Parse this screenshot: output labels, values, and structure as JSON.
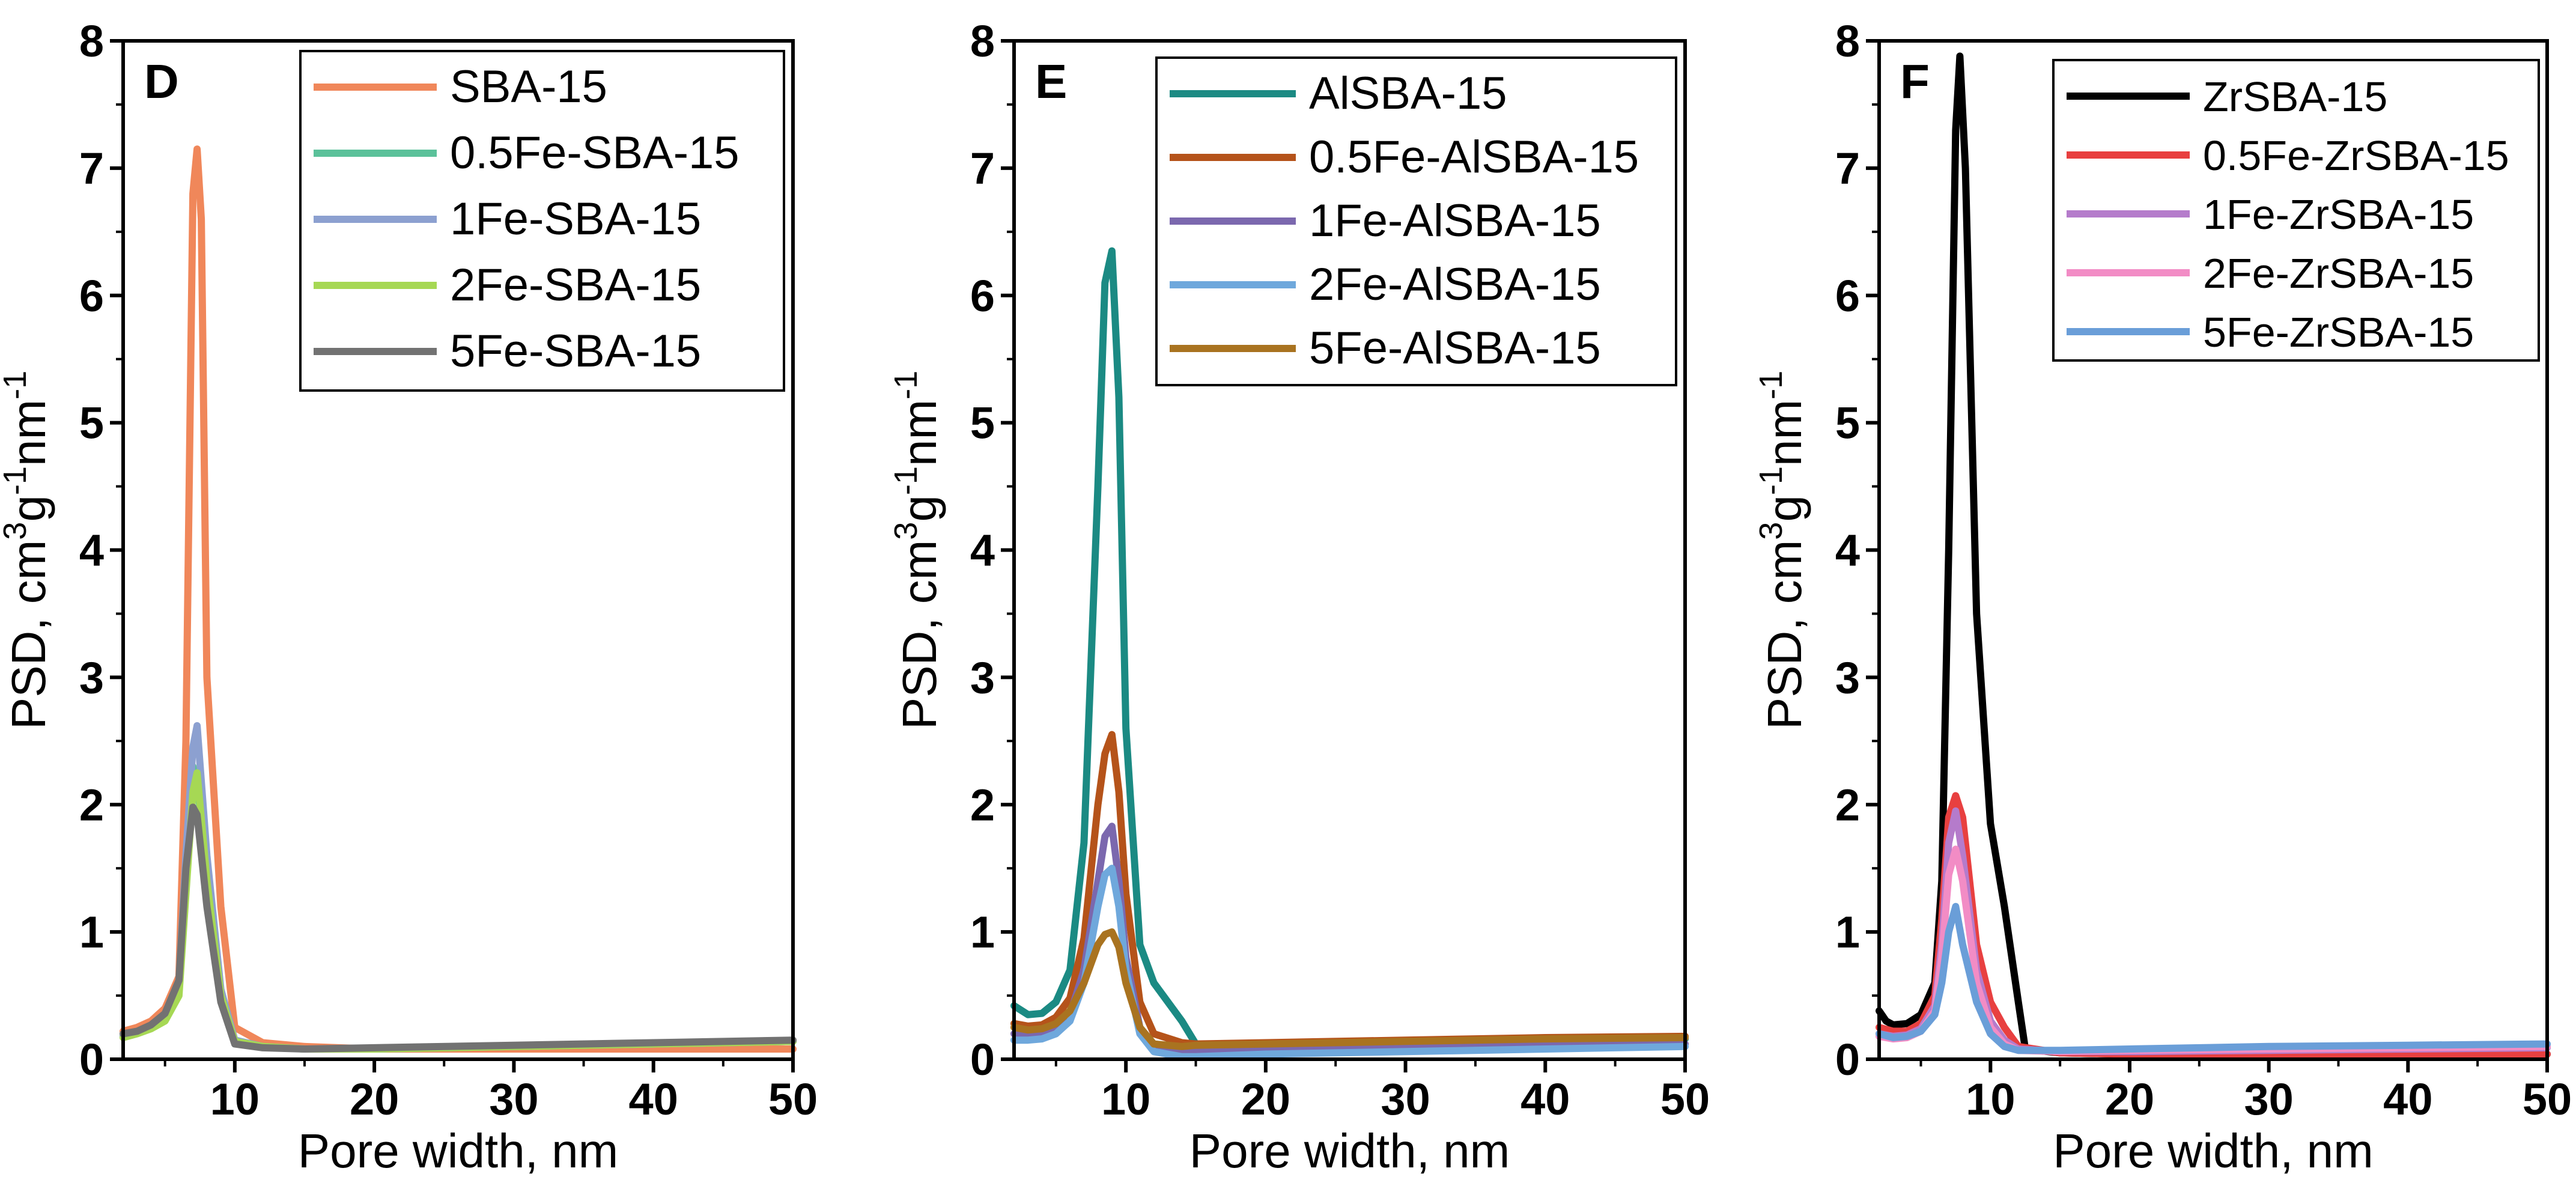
{
  "chart_data": [
    {
      "type": "line",
      "panel_label": "D",
      "xlabel": "Pore width, nm",
      "ylabel_parts": [
        "PSD, cm",
        "3",
        "g",
        "-1",
        "nm",
        "-1"
      ],
      "xlim": [
        2,
        50
      ],
      "ylim": [
        0,
        8
      ],
      "xticks": [
        10,
        20,
        30,
        40,
        50
      ],
      "yticks": [
        0,
        1,
        2,
        3,
        4,
        5,
        6,
        7,
        8
      ],
      "legend_position": "top-right",
      "series": [
        {
          "name": "SBA-15",
          "color": "#F0875A",
          "x": [
            2,
            3,
            4,
            5,
            6,
            6.5,
            7,
            7.3,
            7.6,
            8,
            9,
            10,
            12,
            15,
            20,
            30,
            40,
            50
          ],
          "y": [
            0.22,
            0.25,
            0.3,
            0.4,
            0.65,
            2.5,
            6.8,
            7.15,
            6.6,
            3.0,
            1.2,
            0.25,
            0.13,
            0.1,
            0.08,
            0.08,
            0.08,
            0.08
          ]
        },
        {
          "name": "0.5Fe-SBA-15",
          "color": "#5BC19A",
          "x": [
            2,
            3,
            4,
            5,
            6,
            6.5,
            7,
            7.3,
            8,
            9,
            10,
            12,
            15,
            20,
            30,
            40,
            50
          ],
          "y": [
            0.18,
            0.21,
            0.25,
            0.33,
            0.55,
            1.4,
            2.3,
            2.2,
            1.4,
            0.5,
            0.15,
            0.1,
            0.08,
            0.08,
            0.1,
            0.12,
            0.14
          ]
        },
        {
          "name": "1Fe-SBA-15",
          "color": "#8CA0D0",
          "x": [
            2,
            3,
            4,
            5,
            6,
            6.5,
            7,
            7.3,
            8,
            9,
            10,
            12,
            15,
            20,
            30,
            40,
            50
          ],
          "y": [
            0.18,
            0.21,
            0.26,
            0.35,
            0.6,
            1.6,
            2.45,
            2.62,
            1.6,
            0.55,
            0.15,
            0.1,
            0.08,
            0.08,
            0.1,
            0.12,
            0.14
          ]
        },
        {
          "name": "2Fe-SBA-15",
          "color": "#A6D854",
          "x": [
            2,
            3,
            4,
            5,
            6,
            6.5,
            7,
            7.3,
            8,
            9,
            10,
            12,
            15,
            20,
            30,
            40,
            50
          ],
          "y": [
            0.17,
            0.2,
            0.24,
            0.3,
            0.5,
            1.3,
            2.1,
            2.25,
            1.4,
            0.5,
            0.14,
            0.1,
            0.08,
            0.08,
            0.1,
            0.12,
            0.14
          ]
        },
        {
          "name": "5Fe-SBA-15",
          "color": "#727272",
          "x": [
            2,
            3,
            4,
            5,
            6,
            6.5,
            7,
            7.3,
            8,
            9,
            10,
            12,
            15,
            20,
            30,
            40,
            50
          ],
          "y": [
            0.2,
            0.22,
            0.27,
            0.36,
            0.62,
            1.5,
            1.98,
            1.92,
            1.2,
            0.45,
            0.12,
            0.09,
            0.08,
            0.09,
            0.11,
            0.13,
            0.15
          ]
        }
      ]
    },
    {
      "type": "line",
      "panel_label": "E",
      "xlabel": "Pore width, nm",
      "ylabel_parts": [
        "PSD, cm",
        "3",
        "g",
        "-1",
        "nm",
        "-1"
      ],
      "xlim": [
        2,
        50
      ],
      "ylim": [
        0,
        8
      ],
      "xticks": [
        10,
        20,
        30,
        40,
        50
      ],
      "yticks": [
        0,
        1,
        2,
        3,
        4,
        5,
        6,
        7,
        8
      ],
      "legend_position": "top-right",
      "series": [
        {
          "name": "AlSBA-15",
          "color": "#1B8A83",
          "x": [
            2,
            3,
            4,
            5,
            6,
            7,
            8,
            8.5,
            9,
            9.5,
            10,
            11,
            12,
            14,
            15,
            20,
            30,
            40,
            50
          ],
          "y": [
            0.42,
            0.35,
            0.36,
            0.45,
            0.7,
            1.7,
            4.5,
            6.1,
            6.35,
            5.2,
            2.6,
            0.9,
            0.6,
            0.3,
            0.12,
            0.1,
            0.12,
            0.14,
            0.16
          ]
        },
        {
          "name": "0.5Fe-AlSBA-15",
          "color": "#B5531A",
          "x": [
            2,
            3,
            4,
            5,
            6,
            7,
            8,
            8.5,
            9,
            9.5,
            10,
            11,
            12,
            14,
            15,
            20,
            30,
            40,
            50
          ],
          "y": [
            0.28,
            0.26,
            0.27,
            0.33,
            0.48,
            0.95,
            2.0,
            2.4,
            2.55,
            2.1,
            1.3,
            0.45,
            0.2,
            0.13,
            0.12,
            0.13,
            0.15,
            0.17,
            0.18
          ]
        },
        {
          "name": "1Fe-AlSBA-15",
          "color": "#7B68AE",
          "x": [
            2,
            3,
            4,
            5,
            6,
            7,
            8,
            8.5,
            9,
            9.5,
            10,
            11,
            12,
            14,
            15,
            20,
            30,
            40,
            50
          ],
          "y": [
            0.2,
            0.19,
            0.2,
            0.25,
            0.35,
            0.7,
            1.4,
            1.75,
            1.83,
            1.4,
            0.8,
            0.25,
            0.1,
            0.06,
            0.06,
            0.07,
            0.09,
            0.11,
            0.12
          ]
        },
        {
          "name": "2Fe-AlSBA-15",
          "color": "#6FA8DC",
          "x": [
            2,
            3,
            4,
            5,
            6,
            7,
            8,
            8.5,
            9,
            9.5,
            10,
            11,
            12,
            14,
            15,
            20,
            30,
            40,
            50
          ],
          "y": [
            0.15,
            0.15,
            0.16,
            0.2,
            0.3,
            0.6,
            1.2,
            1.45,
            1.5,
            1.2,
            0.7,
            0.2,
            0.06,
            0.02,
            0.02,
            0.04,
            0.06,
            0.08,
            0.1
          ]
        },
        {
          "name": "5Fe-AlSBA-15",
          "color": "#A97320",
          "x": [
            2,
            3,
            4,
            5,
            6,
            7,
            8,
            8.5,
            9,
            9.5,
            10,
            11,
            12,
            14,
            15,
            20,
            30,
            40,
            50
          ],
          "y": [
            0.25,
            0.23,
            0.24,
            0.28,
            0.38,
            0.6,
            0.9,
            0.98,
            1.0,
            0.88,
            0.6,
            0.25,
            0.12,
            0.1,
            0.11,
            0.12,
            0.14,
            0.16,
            0.17
          ]
        }
      ]
    },
    {
      "type": "line",
      "panel_label": "F",
      "xlabel": "Pore width, nm",
      "ylabel_parts": [
        "PSD, cm",
        "3",
        "g",
        "-1",
        "nm",
        "-1"
      ],
      "xlim": [
        2,
        50
      ],
      "ylim": [
        0,
        8
      ],
      "xticks": [
        10,
        20,
        30,
        40,
        50
      ],
      "yticks": [
        0,
        1,
        2,
        3,
        4,
        5,
        6,
        7,
        8
      ],
      "legend_position": "top-right",
      "series": [
        {
          "name": " ZrSBA-15",
          "color": "#000000",
          "x": [
            2,
            2.5,
            3,
            4,
            5,
            6,
            6.5,
            7,
            7.5,
            7.8,
            8.2,
            9,
            10,
            11,
            12,
            12.5,
            15,
            20,
            30,
            40,
            50
          ],
          "y": [
            0.38,
            0.3,
            0.27,
            0.28,
            0.35,
            0.6,
            1.4,
            4.0,
            7.3,
            7.88,
            7.0,
            3.5,
            1.85,
            1.2,
            0.45,
            0.08,
            0.05,
            0.04,
            0.04,
            0.04,
            0.04
          ]
        },
        {
          "name": "0.5Fe-ZrSBA-15",
          "color": "#E84040",
          "x": [
            2,
            3,
            4,
            5,
            6,
            6.5,
            7,
            7.5,
            8,
            9,
            10,
            11,
            12,
            15,
            20,
            30,
            40,
            50
          ],
          "y": [
            0.25,
            0.22,
            0.22,
            0.28,
            0.5,
            1.1,
            1.9,
            2.07,
            1.9,
            0.9,
            0.45,
            0.25,
            0.1,
            0.05,
            0.04,
            0.04,
            0.04,
            0.04
          ]
        },
        {
          "name": "1Fe-ZrSBA-15",
          "color": "#B57BCB",
          "x": [
            2,
            3,
            4,
            5,
            6,
            6.5,
            7,
            7.5,
            8,
            9,
            10,
            11,
            12,
            15,
            20,
            30,
            40,
            50
          ],
          "y": [
            0.2,
            0.18,
            0.19,
            0.24,
            0.42,
            0.9,
            1.7,
            1.95,
            1.6,
            0.7,
            0.3,
            0.15,
            0.08,
            0.06,
            0.06,
            0.07,
            0.08,
            0.09
          ]
        },
        {
          "name": "2Fe-ZrSBA-15",
          "color": "#F28CC5",
          "x": [
            2,
            3,
            4,
            5,
            6,
            6.5,
            7,
            7.5,
            8,
            9,
            10,
            11,
            12,
            15,
            20,
            30,
            40,
            50
          ],
          "y": [
            0.18,
            0.16,
            0.17,
            0.22,
            0.38,
            0.8,
            1.45,
            1.65,
            1.4,
            0.6,
            0.25,
            0.12,
            0.07,
            0.06,
            0.07,
            0.08,
            0.09,
            0.1
          ]
        },
        {
          "name": "5Fe-ZrSBA-15",
          "color": "#6A9ED8",
          "x": [
            2,
            3,
            4,
            5,
            6,
            6.5,
            7,
            7.5,
            8,
            9,
            10,
            11,
            12,
            15,
            20,
            30,
            40,
            50
          ],
          "y": [
            0.2,
            0.17,
            0.18,
            0.22,
            0.35,
            0.6,
            1.0,
            1.2,
            0.9,
            0.45,
            0.2,
            0.1,
            0.07,
            0.07,
            0.08,
            0.1,
            0.11,
            0.12
          ]
        }
      ]
    }
  ]
}
